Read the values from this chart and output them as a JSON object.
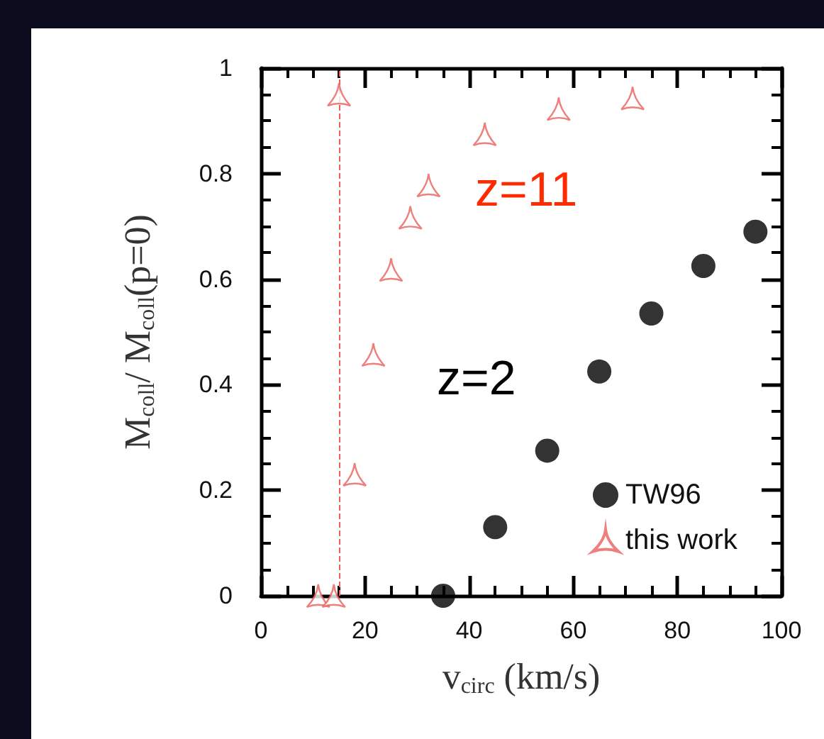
{
  "chart_data": {
    "type": "scatter",
    "xlabel": "v$_{circ}$ (km/s)",
    "ylabel": "M$_{coll}$/ M$_{coll}$(p=0)",
    "xlim": [
      0,
      100
    ],
    "xticks": [
      0,
      20,
      40,
      60,
      80,
      100
    ],
    "ylim": [
      0,
      1
    ],
    "yticks": [
      0,
      0.2,
      0.4,
      0.6,
      0.8,
      1
    ],
    "grid": false,
    "legend": "bottom right",
    "annotations": [
      "z=11",
      "z=2"
    ],
    "ref_lines": [
      {
        "axis": "x",
        "value": 15,
        "color": "#e8605c",
        "line_style": "dashed"
      }
    ],
    "series": [
      {
        "name": "TW96",
        "color": "#000000",
        "marker": "circle",
        "x": [
          35,
          45,
          55,
          65,
          75,
          85,
          95
        ],
        "values": [
          0,
          0.13,
          0.275,
          0.425,
          0.535,
          0.625,
          0.69
        ]
      },
      {
        "name": "this work",
        "color": "#e8605c",
        "marker": "triangle",
        "x": [
          11,
          14,
          15,
          18,
          21.6,
          25,
          28.7,
          32.2,
          43,
          57.2,
          71.4
        ],
        "values": [
          0,
          0,
          0.95,
          0.23,
          0.457,
          0.618,
          0.717,
          0.778,
          0.875,
          0.923,
          0.943
        ]
      }
    ]
  }
}
